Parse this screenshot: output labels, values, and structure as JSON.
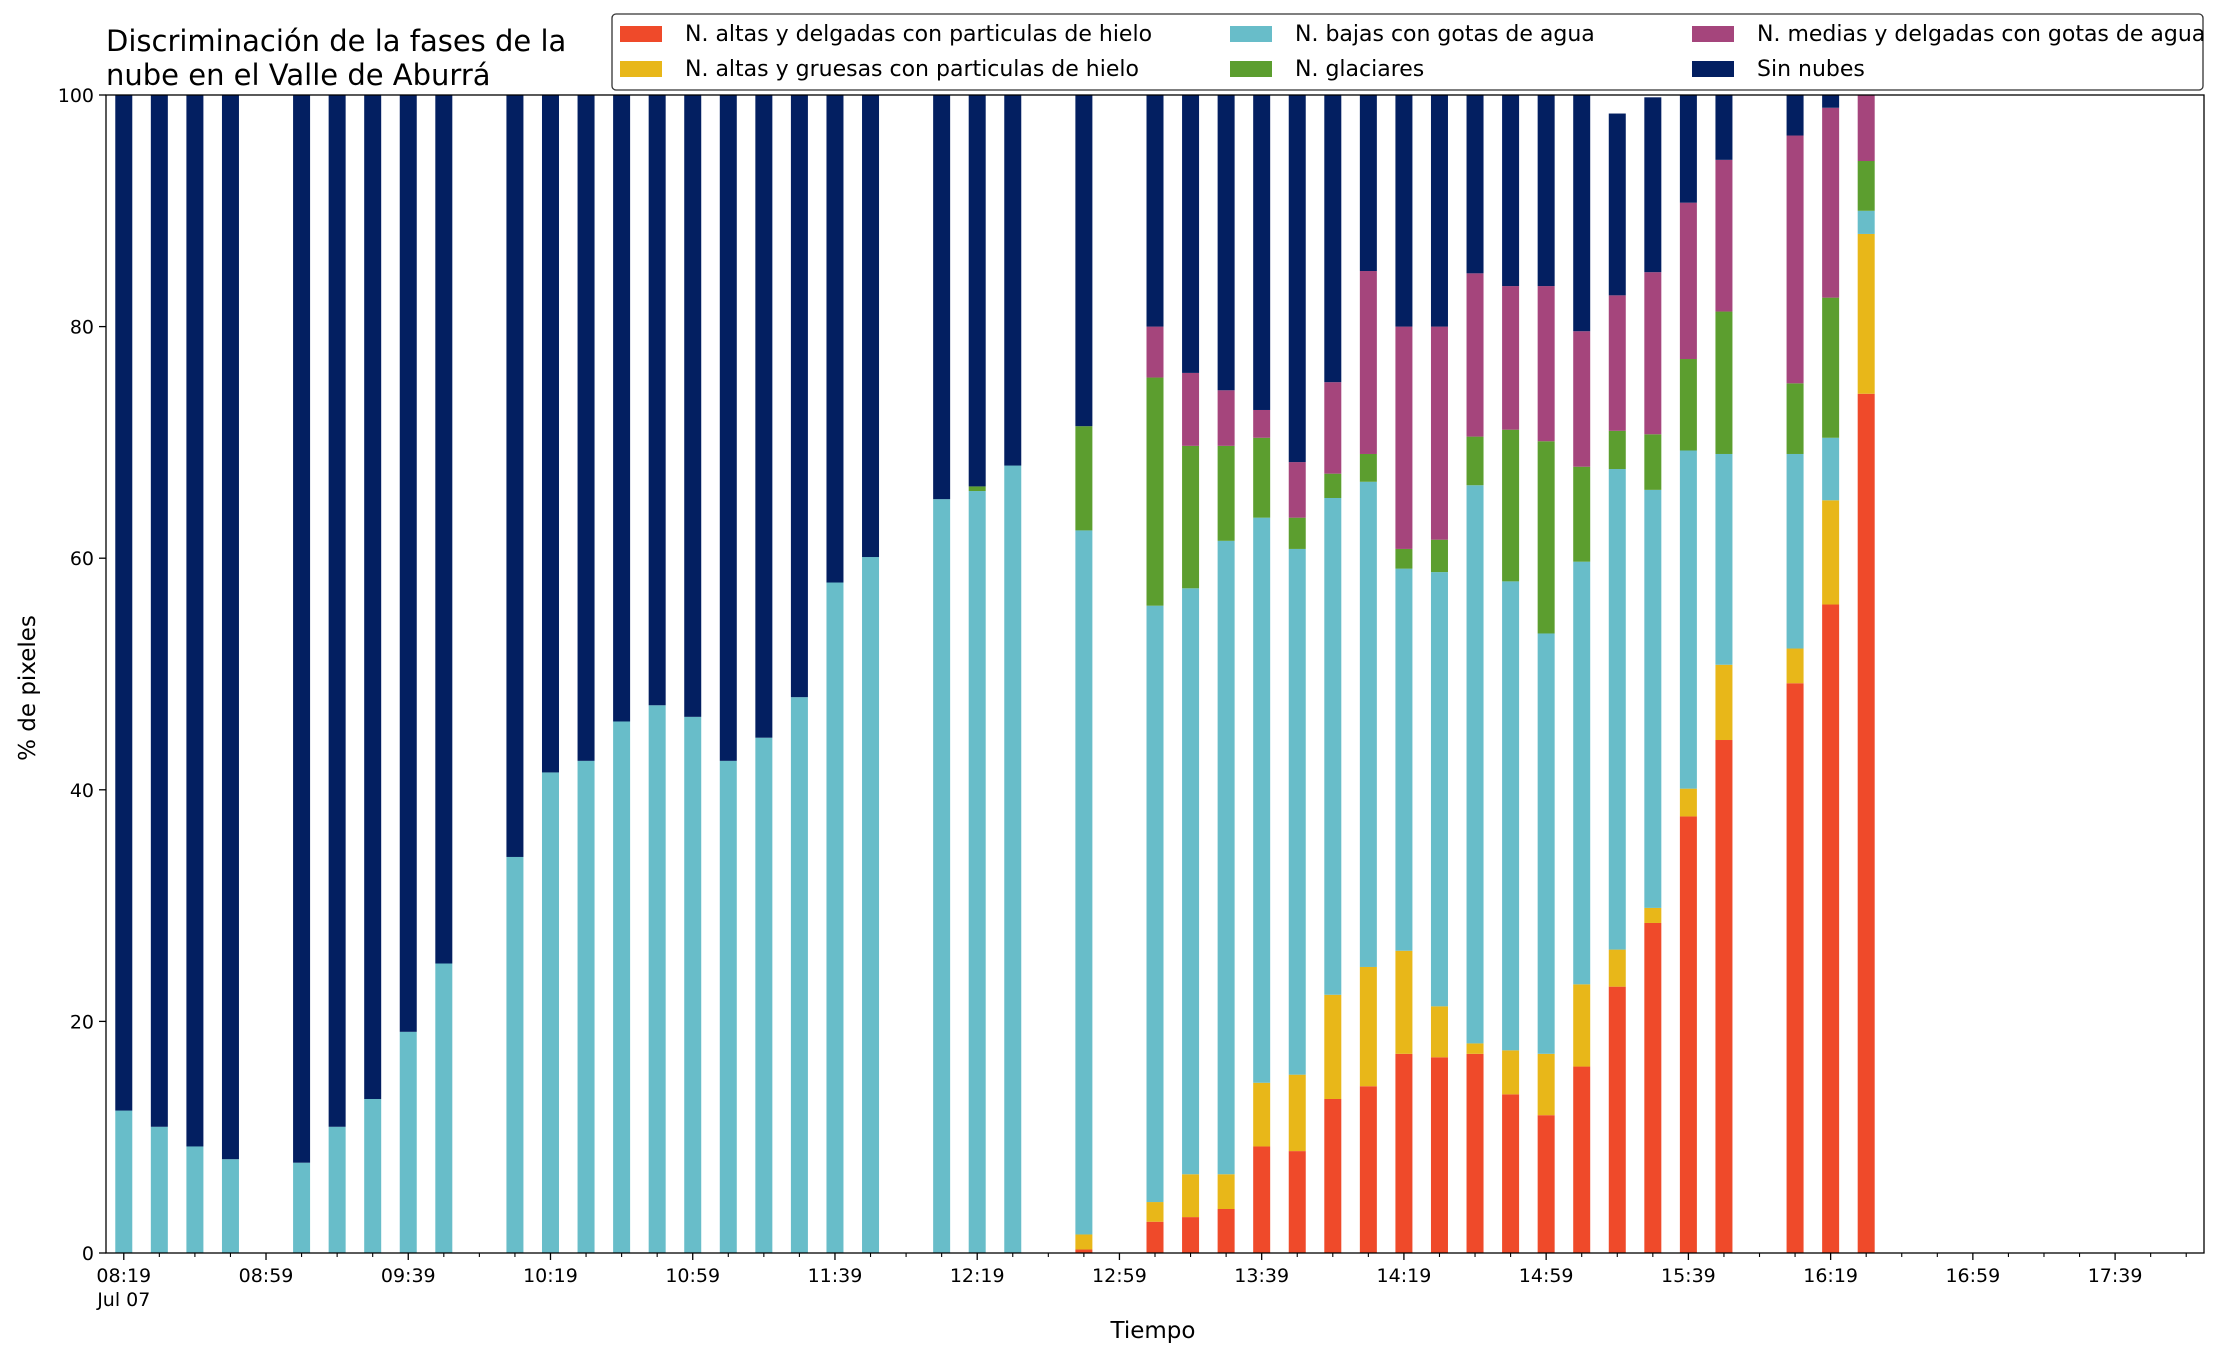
{
  "chart_data": {
    "type": "bar",
    "stacked": true,
    "title_lines": [
      "Discriminación de la fases de la",
      "nube en el Valle de Aburrá"
    ],
    "xlabel": "Tiempo",
    "ylabel": "% de pixeles",
    "ylim": [
      0,
      100
    ],
    "yticks": [
      0,
      20,
      40,
      60,
      80,
      100
    ],
    "xlim": [
      "08:14",
      "18:04"
    ],
    "x_major_ticks": [
      "08:19",
      "08:59",
      "09:39",
      "10:19",
      "10:59",
      "11:39",
      "12:19",
      "12:59",
      "13:39",
      "14:19",
      "14:59",
      "15:39",
      "16:19",
      "16:59",
      "17:39"
    ],
    "x_first_tick_sublabel": "Jul 07",
    "x_minor_tick_interval_minutes": 10,
    "grid": false,
    "legend_position": "top-right",
    "legend_columns": 3,
    "times": [
      "08:19",
      "08:29",
      "08:39",
      "08:49",
      "09:09",
      "09:19",
      "09:29",
      "09:39",
      "09:49",
      "10:09",
      "10:19",
      "10:29",
      "10:39",
      "10:49",
      "10:59",
      "11:09",
      "11:19",
      "11:29",
      "11:39",
      "11:49",
      "12:09",
      "12:19",
      "12:29",
      "12:49",
      "13:09",
      "13:19",
      "13:29",
      "13:39",
      "13:49",
      "13:59",
      "14:09",
      "14:19",
      "14:29",
      "14:39",
      "14:49",
      "14:59",
      "15:09",
      "15:19",
      "15:29",
      "15:39",
      "15:49",
      "16:09",
      "16:19",
      "16:29"
    ],
    "series": [
      {
        "name": "N. altas y delgadas con particulas de hielo",
        "color": "#ef4a2a",
        "values": [
          0,
          0,
          0,
          0,
          0,
          0,
          0,
          0,
          0,
          0,
          0,
          0,
          0,
          0,
          0,
          0,
          0,
          0,
          0,
          0,
          0,
          0,
          0,
          0.3,
          2.7,
          3.1,
          3.8,
          9.2,
          8.8,
          13.3,
          14.4,
          17.2,
          16.9,
          17.2,
          13.7,
          11.9,
          16.1,
          23,
          28.5,
          37.7,
          44.3,
          49.2,
          56,
          74.2
        ]
      },
      {
        "name": "N. altas y gruesas con particulas de hielo",
        "color": "#e8b719",
        "values": [
          0,
          0,
          0,
          0,
          0,
          0,
          0,
          0,
          0,
          0,
          0,
          0,
          0,
          0,
          0,
          0,
          0,
          0,
          0,
          0,
          0,
          0,
          0,
          1.3,
          1.7,
          3.7,
          3,
          5.5,
          6.6,
          9,
          10.3,
          8.9,
          4.4,
          0.9,
          3.8,
          5.3,
          7.1,
          3.2,
          1.3,
          2.4,
          6.5,
          3,
          9,
          13.8
        ]
      },
      {
        "name": "N. bajas con gotas de agua",
        "color": "#68bdc9",
        "values": [
          12.3,
          10.9,
          9.2,
          8.1,
          7.8,
          10.9,
          13.3,
          19.1,
          25,
          34.2,
          41.5,
          42.5,
          45.9,
          47.3,
          46.3,
          42.5,
          44.5,
          48,
          57.9,
          60.1,
          65.1,
          65.8,
          68,
          60.8,
          51.5,
          50.6,
          54.7,
          48.8,
          45.4,
          42.9,
          41.9,
          33,
          37.5,
          48.2,
          40.5,
          36.3,
          36.5,
          41.5,
          36.1,
          29.2,
          18.2,
          16.8,
          5.4,
          2
        ]
      },
      {
        "name": "N. glaciares",
        "color": "#5c9e2f",
        "values": [
          0,
          0,
          0,
          0,
          0,
          0,
          0,
          0,
          0,
          0,
          0,
          0,
          0,
          0,
          0,
          0,
          0,
          0,
          0,
          0,
          0,
          0.4,
          0,
          9,
          19.7,
          12.3,
          8.2,
          6.9,
          2.7,
          2.1,
          2.4,
          1.7,
          2.8,
          4.2,
          13.1,
          16.6,
          8.2,
          3.3,
          4.8,
          7.9,
          12.3,
          6.1,
          12.1,
          4.3
        ]
      },
      {
        "name": "N. medias y delgadas con gotas de agua",
        "color": "#a5457c",
        "values": [
          0,
          0,
          0,
          0,
          0,
          0,
          0,
          0,
          0,
          0,
          0,
          0,
          0,
          0,
          0,
          0,
          0,
          0,
          0,
          0,
          0,
          0,
          0,
          0,
          4.4,
          6.3,
          4.8,
          2.4,
          4.8,
          7.9,
          15.8,
          19.2,
          18.4,
          14.1,
          12.4,
          13.4,
          11.7,
          11.7,
          14,
          13.5,
          13.1,
          21.4,
          16.4,
          5.7
        ]
      },
      {
        "name": "Sin nubes",
        "color": "#031f61",
        "values": [
          87.7,
          89.1,
          90.8,
          91.9,
          92.2,
          89.1,
          86.7,
          80.9,
          75,
          65.8,
          58.5,
          57.5,
          54.1,
          52.7,
          53.7,
          57.5,
          55.5,
          52,
          42.1,
          39.9,
          34.9,
          33.8,
          32,
          28.6,
          20,
          24,
          25.5,
          27.2,
          31.7,
          24.8,
          15.2,
          20,
          20,
          15.4,
          16.5,
          16.5,
          20.4,
          15.7,
          15.1,
          9.3,
          5.6,
          3.5,
          1.1,
          0
        ]
      }
    ]
  }
}
